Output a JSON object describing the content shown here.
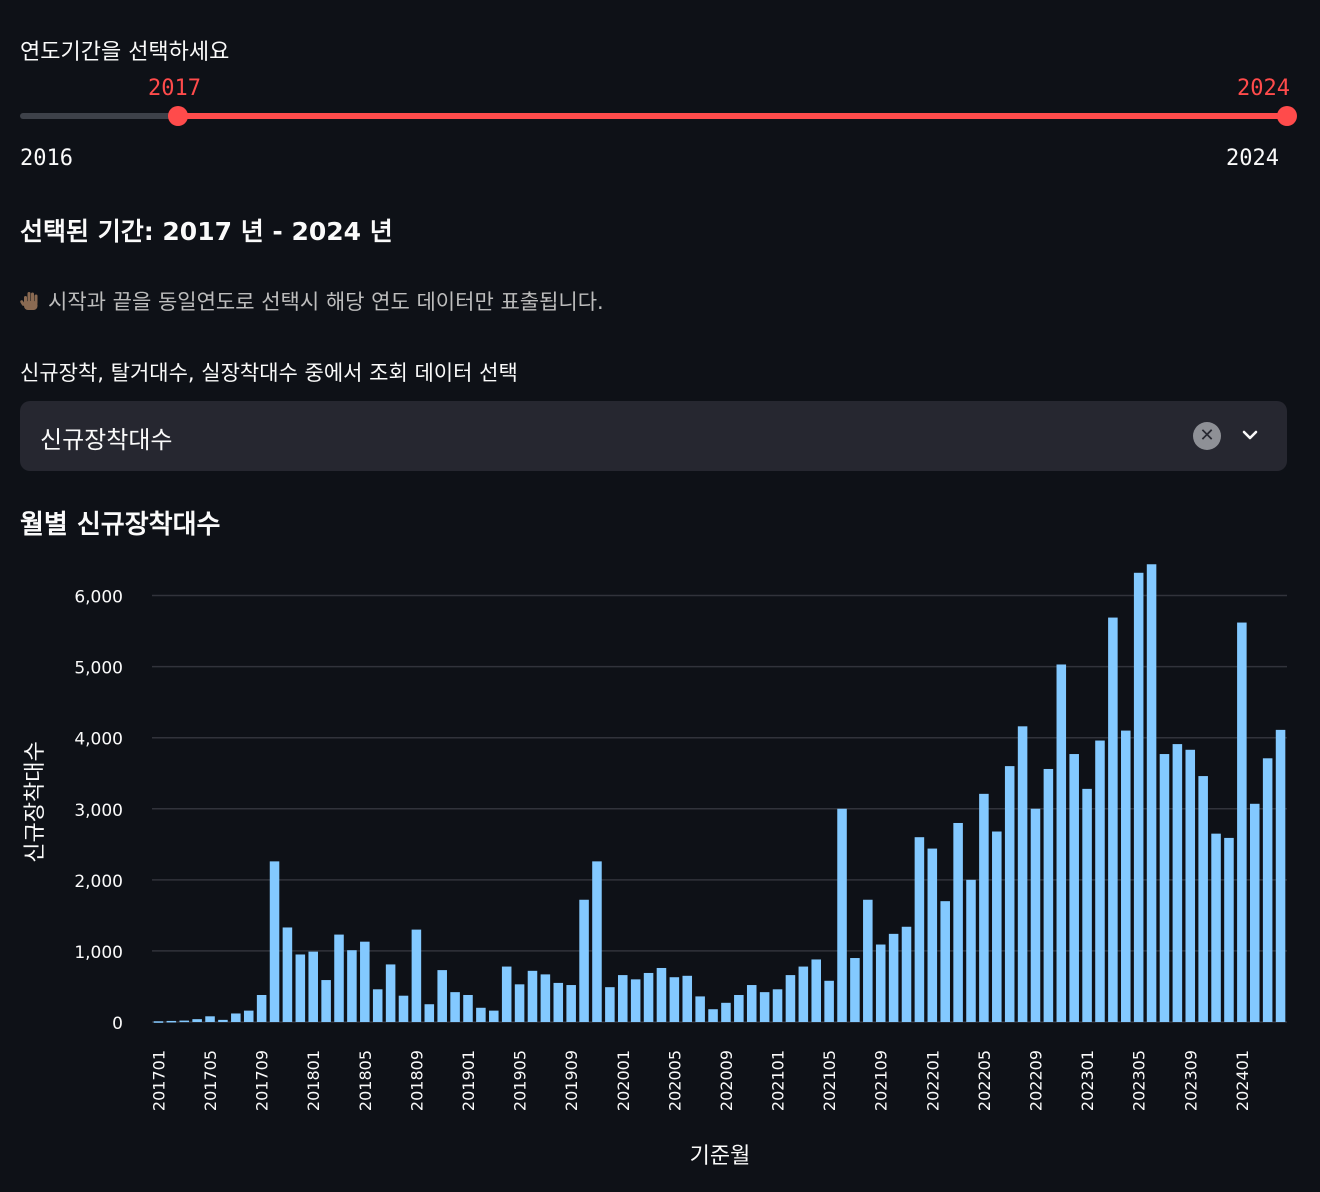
{
  "slider": {
    "label": "연도기간을 선택하세요",
    "value_min": "2017",
    "value_max": "2024",
    "range_min": "2016",
    "range_max": "2024",
    "accent_color": "#ff4b4b"
  },
  "selected_text": "선택된 기간: 2017 년 - 2024 년",
  "note": {
    "icon": "raised-hand-icon",
    "text": "시작과 끝을 동일연도로 선택시 해당 연도 데이터만 표출됩니다."
  },
  "select": {
    "label": "신규장착, 탈거대수, 실장착대수 중에서 조회 데이터 선택",
    "value": "신규장착대수",
    "clear_icon": "✕",
    "chevron_icon": "chevron-down-icon"
  },
  "chart_title": "월별 신규장착대수",
  "chart_data": {
    "type": "bar",
    "title": "월별 신규장착대수",
    "xlabel": "기준월",
    "ylabel": "신규장착대수",
    "ylim": [
      0,
      6500
    ],
    "yticks": [
      0,
      1000,
      2000,
      3000,
      4000,
      5000,
      6000
    ],
    "ytick_labels": [
      "0",
      "1,000",
      "2,000",
      "3,000",
      "4,000",
      "5,000",
      "6,000"
    ],
    "xtick_labels": [
      "201701",
      "201705",
      "201709",
      "201801",
      "201805",
      "201809",
      "201901",
      "201905",
      "201909",
      "202001",
      "202005",
      "202009",
      "202101",
      "202105",
      "202109",
      "202201",
      "202205",
      "202209",
      "202301",
      "202305",
      "202309",
      "202401"
    ],
    "bar_color": "#83c9ff",
    "categories": [
      "201701",
      "201702",
      "201703",
      "201704",
      "201705",
      "201706",
      "201707",
      "201708",
      "201709",
      "201710",
      "201711",
      "201712",
      "201801",
      "201802",
      "201803",
      "201804",
      "201805",
      "201806",
      "201807",
      "201808",
      "201809",
      "201810",
      "201811",
      "201812",
      "201901",
      "201902",
      "201903",
      "201904",
      "201905",
      "201906",
      "201907",
      "201908",
      "201909",
      "201910",
      "201911",
      "201912",
      "202001",
      "202002",
      "202003",
      "202004",
      "202005",
      "202006",
      "202007",
      "202008",
      "202009",
      "202010",
      "202011",
      "202012",
      "202101",
      "202102",
      "202103",
      "202104",
      "202105",
      "202106",
      "202107",
      "202108",
      "202109",
      "202110",
      "202111",
      "202112",
      "202201",
      "202202",
      "202203",
      "202204",
      "202205",
      "202206",
      "202207",
      "202208",
      "202209",
      "202210",
      "202211",
      "202212",
      "202301",
      "202302",
      "202303",
      "202304",
      "202305",
      "202306",
      "202307",
      "202308",
      "202309",
      "202310",
      "202311",
      "202312",
      "202401",
      "202402",
      "202403",
      "202404"
    ],
    "values": [
      10,
      15,
      20,
      40,
      80,
      30,
      120,
      160,
      380,
      2260,
      1330,
      950,
      990,
      590,
      1230,
      1010,
      1130,
      460,
      810,
      370,
      1300,
      250,
      730,
      420,
      380,
      200,
      160,
      780,
      530,
      720,
      670,
      550,
      520,
      1720,
      2260,
      490,
      660,
      600,
      690,
      760,
      630,
      650,
      360,
      180,
      270,
      380,
      520,
      420,
      460,
      660,
      780,
      880,
      580,
      3000,
      900,
      1720,
      1090,
      1240,
      1340,
      2600,
      2440,
      1700,
      2800,
      2000,
      3210,
      2680,
      3600,
      4160,
      3000,
      3560,
      5030,
      3770,
      3280,
      3960,
      5690,
      4100,
      6320,
      6440,
      3770,
      3910,
      3830,
      3460,
      2650,
      2590,
      5620,
      3070,
      3710,
      4110
    ]
  }
}
